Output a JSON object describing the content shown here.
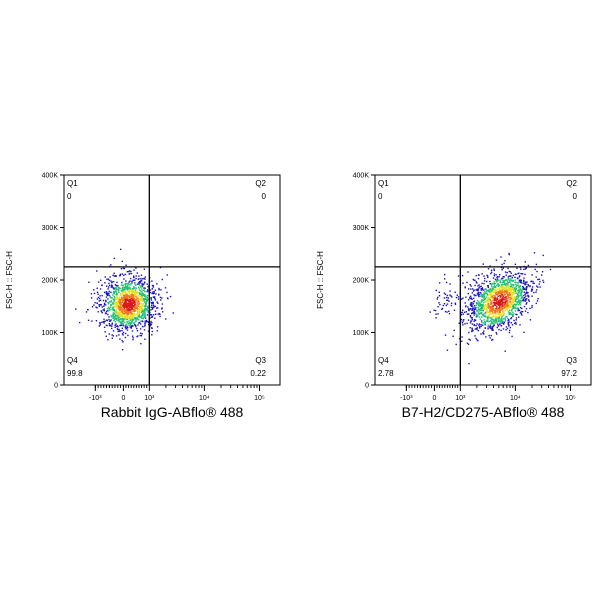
{
  "chart_data": [
    {
      "type": "scatter",
      "subtype": "flow-cytometry-density-dot-plot",
      "xlabel": "Rabbit IgG-ABflo® 488",
      "ylabel": "FSC-H :: FSC-H",
      "x_scale": "biexponential",
      "x_ticks": [
        "-10³",
        "0",
        "10³",
        "10⁴",
        "10⁵"
      ],
      "x_tick_values": [
        -1000,
        0,
        1000,
        10000,
        100000
      ],
      "ylim": [
        0,
        400000
      ],
      "y_ticks": [
        "0",
        "100K",
        "200K",
        "300K",
        "400K"
      ],
      "y_tick_values": [
        0,
        100000,
        200000,
        300000,
        400000
      ],
      "gate": {
        "x": 1000,
        "y": 225000
      },
      "quadrants": [
        {
          "name": "Q1",
          "value": "0",
          "position": "top-left"
        },
        {
          "name": "Q2",
          "value": "0",
          "position": "top-right"
        },
        {
          "name": "Q3",
          "value": "0.22",
          "position": "bottom-right"
        },
        {
          "name": "Q4",
          "value": "99.8",
          "position": "bottom-left"
        }
      ],
      "population": {
        "x_center": 180,
        "y_center": 155000,
        "y_range": [
          100000,
          210000
        ],
        "x_range": [
          -2000,
          900
        ]
      },
      "grid": false,
      "legend": "none"
    },
    {
      "type": "scatter",
      "subtype": "flow-cytometry-density-dot-plot",
      "xlabel": "B7-H2/CD275-ABflo® 488",
      "ylabel": "FSC-H :: FSC-H",
      "x_scale": "biexponential",
      "x_ticks": [
        "-10³",
        "0",
        "10³",
        "10⁴",
        "10⁵"
      ],
      "x_tick_values": [
        -1000,
        0,
        1000,
        10000,
        100000
      ],
      "ylim": [
        0,
        400000
      ],
      "y_ticks": [
        "0",
        "100K",
        "200K",
        "300K",
        "400K"
      ],
      "y_tick_values": [
        0,
        100000,
        200000,
        300000,
        400000
      ],
      "gate": {
        "x": 1000,
        "y": 225000
      },
      "quadrants": [
        {
          "name": "Q1",
          "value": "0",
          "position": "top-left"
        },
        {
          "name": "Q2",
          "value": "0",
          "position": "top-right"
        },
        {
          "name": "Q3",
          "value": "97.2",
          "position": "bottom-right"
        },
        {
          "name": "Q4",
          "value": "2.78",
          "position": "bottom-left"
        }
      ],
      "population": {
        "x_center": 5000,
        "y_center": 160000,
        "y_range": [
          100000,
          215000
        ],
        "x_range": [
          1000,
          15000
        ]
      },
      "grid": false,
      "legend": "none"
    }
  ],
  "colors": {
    "density_low": "#1a10c8",
    "density_mid": "#22c070",
    "density_high_1": "#e8e020",
    "density_high_2": "#f07818",
    "density_peak": "#d81818",
    "axis": "#000000"
  }
}
